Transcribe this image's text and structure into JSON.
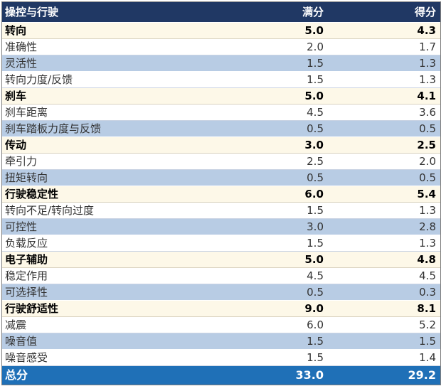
{
  "header": {
    "col1": "操控与行驶",
    "col2": "满分",
    "col3": "得分"
  },
  "sections": [
    {
      "name": "转向",
      "max": "5.0",
      "score": "4.3",
      "items": [
        {
          "name": "准确性",
          "max": "2.0",
          "score": "1.7"
        },
        {
          "name": "灵活性",
          "max": "1.5",
          "score": "1.3"
        },
        {
          "name": "转向力度/反馈",
          "max": "1.5",
          "score": "1.3"
        }
      ]
    },
    {
      "name": "刹车",
      "max": "5.0",
      "score": "4.1",
      "items": [
        {
          "name": "刹车距离",
          "max": "4.5",
          "score": "3.6"
        },
        {
          "name": "刹车踏板力度与反馈",
          "max": "0.5",
          "score": "0.5"
        }
      ]
    },
    {
      "name": "传动",
      "max": "3.0",
      "score": "2.5",
      "items": [
        {
          "name": "牵引力",
          "max": "2.5",
          "score": "2.0"
        },
        {
          "name": "扭矩转向",
          "max": "0.5",
          "score": "0.5"
        }
      ]
    },
    {
      "name": "行驶稳定性",
      "max": "6.0",
      "score": "5.4",
      "items": [
        {
          "name": "转向不足/转向过度",
          "max": "1.5",
          "score": "1.3"
        },
        {
          "name": "可控性",
          "max": "3.0",
          "score": "2.8"
        },
        {
          "name": "负载反应",
          "max": "1.5",
          "score": "1.3"
        }
      ]
    },
    {
      "name": "电子辅助",
      "max": "5.0",
      "score": "4.8",
      "items": [
        {
          "name": "稳定作用",
          "max": "4.5",
          "score": "4.5"
        },
        {
          "name": "可选择性",
          "max": "0.5",
          "score": "0.3"
        }
      ]
    },
    {
      "name": "行驶舒适性",
      "max": "9.0",
      "score": "8.1",
      "items": [
        {
          "name": "减震",
          "max": "6.0",
          "score": "5.2"
        },
        {
          "name": "噪音值",
          "max": "1.5",
          "score": "1.5"
        },
        {
          "name": "噪音感受",
          "max": "1.5",
          "score": "1.4"
        }
      ]
    }
  ],
  "total": {
    "name": "总分",
    "max": "33.0",
    "score": "29.2"
  }
}
